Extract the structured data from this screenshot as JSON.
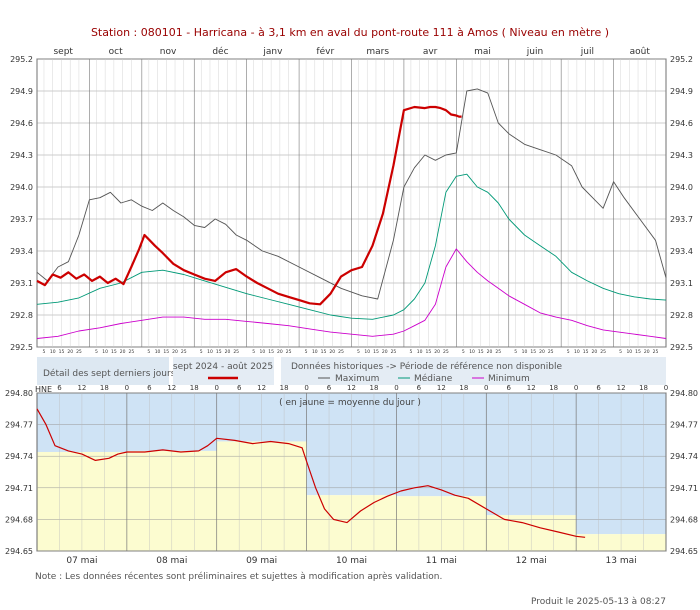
{
  "title": "Station : 080101      -  Harricana - à 3,1 km en aval du pont-route 111 à Amos   ( Niveau en mètre )",
  "footer": {
    "note": "Note : Les données récentes sont préliminaires et sujettes à modification après validation.",
    "produced": "Produit le 2025-05-13 à 08:27"
  },
  "legend": {
    "detail_label": "Détail des sept derniers jours",
    "period_label": "sept 2024 - août 2025",
    "historic_title": "Données historiques -> Période de référence non disponible",
    "maximum": "Maximum",
    "median": "Médiane",
    "minimum": "Minimum"
  },
  "colors": {
    "current": "#cc0000",
    "maximum": "#555555",
    "median": "#009977",
    "minimum": "#cc00cc",
    "grid": "#999999",
    "lower_bg_blue": "#cfe3f5",
    "lower_bg_yellow": "#fcfcd0",
    "legend_bg": "#e4ecf4",
    "title": "#990000"
  },
  "chart_data": [
    {
      "type": "line",
      "xlabel": "",
      "ylabel": "",
      "month_labels": [
        "sept",
        "oct",
        "nov",
        "déc",
        "janv",
        "févr",
        "mars",
        "avr",
        "mai",
        "juin",
        "juil",
        "août"
      ],
      "day_tick_labels": [
        "5",
        "10",
        "15",
        "20",
        "25"
      ],
      "x_range_months": [
        0,
        12
      ],
      "ylim": [
        292.5,
        295.2
      ],
      "y_ticks": [
        "292.5",
        "292.8",
        "293.1",
        "293.4",
        "293.7",
        "294.0",
        "294.3",
        "294.6",
        "294.9",
        "295.2"
      ],
      "grid": true,
      "series": [
        {
          "name": "sept 2024 - août 2025",
          "x": [
            0,
            0.15,
            0.3,
            0.45,
            0.6,
            0.75,
            0.9,
            1.05,
            1.2,
            1.35,
            1.5,
            1.65,
            1.8,
            1.95,
            2.05,
            2.15,
            2.25,
            2.4,
            2.6,
            2.8,
            3.0,
            3.2,
            3.4,
            3.6,
            3.8,
            4.0,
            4.2,
            4.4,
            4.6,
            4.8,
            5.0,
            5.2,
            5.4,
            5.6,
            5.8,
            6.0,
            6.2,
            6.4,
            6.6,
            6.8,
            7.0,
            7.2,
            7.4,
            7.5,
            7.6,
            7.7,
            7.8,
            7.9,
            8.0,
            8.05,
            8.1
          ],
          "values": [
            293.12,
            293.08,
            293.18,
            293.15,
            293.2,
            293.14,
            293.18,
            293.12,
            293.16,
            293.1,
            293.14,
            293.09,
            293.25,
            293.42,
            293.55,
            293.5,
            293.45,
            293.38,
            293.28,
            293.22,
            293.18,
            293.14,
            293.12,
            293.2,
            293.23,
            293.16,
            293.1,
            293.05,
            293.0,
            292.97,
            292.94,
            292.91,
            292.9,
            293.0,
            293.16,
            293.22,
            293.25,
            293.45,
            293.75,
            294.2,
            294.72,
            294.75,
            294.74,
            294.75,
            294.75,
            294.74,
            294.72,
            294.68,
            294.67,
            294.66,
            294.66
          ]
        },
        {
          "name": "Maximum",
          "x": [
            0,
            0.2,
            0.4,
            0.6,
            0.8,
            1.0,
            1.2,
            1.4,
            1.6,
            1.8,
            2.0,
            2.2,
            2.4,
            2.6,
            2.8,
            3.0,
            3.2,
            3.4,
            3.6,
            3.8,
            4.0,
            4.3,
            4.6,
            5.0,
            5.4,
            5.8,
            6.2,
            6.5,
            6.8,
            7.0,
            7.2,
            7.4,
            7.6,
            7.8,
            8.0,
            8.2,
            8.4,
            8.6,
            8.8,
            9.0,
            9.3,
            9.6,
            9.9,
            10.2,
            10.4,
            10.6,
            10.8,
            11.0,
            11.2,
            11.5,
            11.8,
            12.0
          ],
          "values": [
            293.2,
            293.12,
            293.25,
            293.3,
            293.55,
            293.88,
            293.9,
            293.95,
            293.85,
            293.88,
            293.82,
            293.78,
            293.85,
            293.78,
            293.72,
            293.64,
            293.62,
            293.7,
            293.65,
            293.55,
            293.5,
            293.4,
            293.35,
            293.25,
            293.15,
            293.05,
            292.98,
            292.95,
            293.5,
            294.0,
            294.18,
            294.3,
            294.25,
            294.3,
            294.32,
            294.9,
            294.92,
            294.88,
            294.6,
            294.5,
            294.4,
            294.35,
            294.3,
            294.2,
            294.0,
            293.9,
            293.8,
            294.05,
            293.9,
            293.7,
            293.5,
            293.15
          ]
        },
        {
          "name": "Médiane",
          "x": [
            0,
            0.4,
            0.8,
            1.2,
            1.6,
            2.0,
            2.4,
            2.8,
            3.2,
            3.6,
            4.0,
            4.4,
            4.8,
            5.2,
            5.6,
            6.0,
            6.4,
            6.8,
            7.0,
            7.2,
            7.4,
            7.6,
            7.8,
            8.0,
            8.2,
            8.4,
            8.6,
            8.8,
            9.0,
            9.3,
            9.6,
            9.9,
            10.2,
            10.5,
            10.8,
            11.1,
            11.4,
            11.7,
            12.0
          ],
          "values": [
            292.9,
            292.92,
            292.96,
            293.05,
            293.1,
            293.2,
            293.22,
            293.18,
            293.12,
            293.06,
            293.0,
            292.95,
            292.9,
            292.85,
            292.8,
            292.77,
            292.76,
            292.8,
            292.85,
            292.95,
            293.1,
            293.45,
            293.95,
            294.1,
            294.12,
            294.0,
            293.95,
            293.85,
            293.7,
            293.55,
            293.45,
            293.35,
            293.2,
            293.12,
            293.05,
            293.0,
            292.97,
            292.95,
            292.94
          ]
        },
        {
          "name": "Minimum",
          "x": [
            0,
            0.4,
            0.8,
            1.2,
            1.6,
            2.0,
            2.4,
            2.8,
            3.2,
            3.6,
            4.0,
            4.4,
            4.8,
            5.2,
            5.6,
            6.0,
            6.4,
            6.8,
            7.0,
            7.2,
            7.4,
            7.6,
            7.8,
            8.0,
            8.2,
            8.4,
            8.6,
            8.8,
            9.0,
            9.3,
            9.6,
            9.9,
            10.2,
            10.5,
            10.8,
            11.1,
            11.4,
            11.7,
            12.0
          ],
          "values": [
            292.58,
            292.6,
            292.65,
            292.68,
            292.72,
            292.75,
            292.78,
            292.78,
            292.76,
            292.76,
            292.74,
            292.72,
            292.7,
            292.67,
            292.64,
            292.62,
            292.6,
            292.62,
            292.65,
            292.7,
            292.75,
            292.9,
            293.25,
            293.42,
            293.3,
            293.2,
            293.12,
            293.05,
            292.98,
            292.9,
            292.82,
            292.78,
            292.75,
            292.7,
            292.66,
            292.64,
            292.62,
            292.6,
            292.58
          ]
        }
      ]
    },
    {
      "type": "line",
      "xlabel": "",
      "ylabel": "",
      "annotation": "( en jaune = moyenne du jour )",
      "hour_axis_label": "HNE",
      "day_labels": [
        "07 mai",
        "08 mai",
        "09 mai",
        "10 mai",
        "11 mai",
        "12 mai",
        "13 mai"
      ],
      "hour_tick_labels": [
        "6",
        "12",
        "18",
        "0"
      ],
      "x_range_days": [
        0,
        7
      ],
      "ylim": [
        294.65,
        294.8
      ],
      "y_ticks": [
        "294.65",
        "294.68",
        "294.71",
        "294.74",
        "294.77",
        "294.80"
      ],
      "grid": true,
      "daily_means": [
        294.744,
        294.745,
        294.754,
        294.703,
        294.702,
        294.684,
        294.666
      ],
      "series": [
        {
          "name": "sept 2024 - août 2025",
          "x": [
            0,
            0.1,
            0.2,
            0.35,
            0.5,
            0.65,
            0.8,
            0.9,
            1.0,
            1.2,
            1.4,
            1.6,
            1.8,
            1.9,
            2.0,
            2.2,
            2.4,
            2.6,
            2.8,
            2.95,
            3.0,
            3.1,
            3.2,
            3.3,
            3.45,
            3.6,
            3.75,
            3.9,
            4.05,
            4.2,
            4.35,
            4.5,
            4.65,
            4.8,
            5.0,
            5.2,
            5.4,
            5.6,
            5.8,
            6.0,
            6.1
          ],
          "values": [
            294.785,
            294.77,
            294.75,
            294.745,
            294.742,
            294.736,
            294.738,
            294.742,
            294.744,
            294.744,
            294.746,
            294.744,
            294.745,
            294.75,
            294.757,
            294.755,
            294.752,
            294.754,
            294.752,
            294.748,
            294.735,
            294.71,
            294.69,
            294.68,
            294.677,
            294.688,
            294.696,
            294.702,
            294.707,
            294.71,
            294.712,
            294.708,
            294.703,
            294.7,
            294.69,
            294.68,
            294.677,
            294.672,
            294.668,
            294.664,
            294.663
          ]
        }
      ]
    }
  ]
}
